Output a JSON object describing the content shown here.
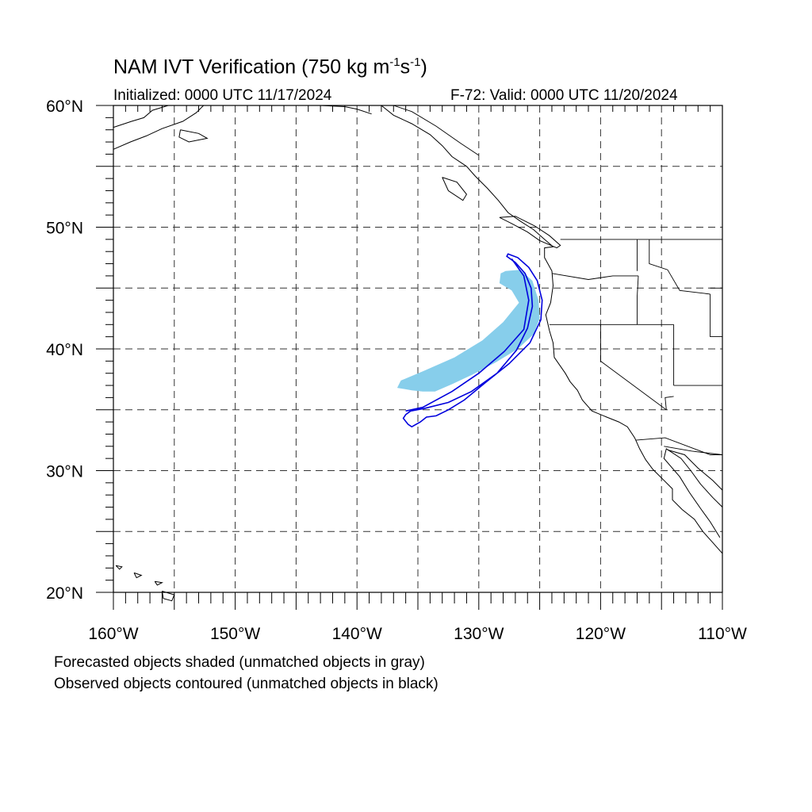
{
  "title": {
    "main": "NAM IVT Verification (750 kg m",
    "exp1": "-1",
    "mid": "s",
    "exp2": "-1",
    "end": ")"
  },
  "subtitle": {
    "left": "Initialized: 0000 UTC 11/17/2024",
    "right": "F-72: Valid: 0000 UTC 11/20/2024"
  },
  "axes": {
    "lon_range": [
      -160,
      -110
    ],
    "lat_range": [
      20,
      60
    ],
    "lon_ticks": [
      {
        "value": -160,
        "label": "160°W"
      },
      {
        "value": -150,
        "label": "150°W"
      },
      {
        "value": -140,
        "label": "140°W"
      },
      {
        "value": -130,
        "label": "130°W"
      },
      {
        "value": -120,
        "label": "120°W"
      },
      {
        "value": -110,
        "label": "110°W"
      }
    ],
    "lat_ticks": [
      {
        "value": 20,
        "label": "20°N"
      },
      {
        "value": 30,
        "label": "30°N"
      },
      {
        "value": 40,
        "label": "40°N"
      },
      {
        "value": 50,
        "label": "50°N"
      },
      {
        "value": 60,
        "label": "60°N"
      }
    ],
    "grid_interval_deg": 5,
    "grid_style": "dashed",
    "grid": true
  },
  "map": {
    "region": "Northeast Pacific and western North America",
    "coastline_color": "#000000",
    "border_color": "#000000"
  },
  "objects": {
    "forecast": {
      "style": "shaded",
      "color": "#87CEEB",
      "matched": true,
      "outline": [
        [
          -127.8,
          46.4
        ],
        [
          -126.6,
          46.5
        ],
        [
          -125.6,
          45.6
        ],
        [
          -125.1,
          44.0
        ],
        [
          -125.0,
          42.5
        ],
        [
          -125.5,
          41.2
        ],
        [
          -126.8,
          40.0
        ],
        [
          -128.6,
          38.9
        ],
        [
          -130.5,
          37.9
        ],
        [
          -132.2,
          37.1
        ],
        [
          -133.6,
          36.5
        ],
        [
          -134.6,
          36.5
        ],
        [
          -135.5,
          36.6
        ],
        [
          -136.7,
          36.8
        ],
        [
          -136.4,
          37.4
        ],
        [
          -134.5,
          38.2
        ],
        [
          -132.0,
          39.3
        ],
        [
          -129.7,
          40.7
        ],
        [
          -128.0,
          42.2
        ],
        [
          -126.7,
          43.8
        ],
        [
          -127.3,
          44.8
        ],
        [
          -128.3,
          45.4
        ],
        [
          -128.2,
          46.2
        ]
      ]
    },
    "observed": {
      "style": "contoured",
      "color": "#0000DD",
      "matched": true,
      "outline": [
        [
          -127.6,
          47.8
        ],
        [
          -126.8,
          47.5
        ],
        [
          -125.9,
          46.7
        ],
        [
          -125.2,
          45.6
        ],
        [
          -124.8,
          44.0
        ],
        [
          -124.9,
          42.4
        ],
        [
          -125.8,
          40.5
        ],
        [
          -127.5,
          38.8
        ],
        [
          -129.5,
          37.2
        ],
        [
          -131.2,
          35.8
        ],
        [
          -132.5,
          35.0
        ],
        [
          -133.5,
          34.5
        ],
        [
          -134.3,
          34.4
        ],
        [
          -134.8,
          34.0
        ],
        [
          -135.5,
          33.6
        ],
        [
          -135.8,
          33.8
        ],
        [
          -136.2,
          34.3
        ],
        [
          -136.0,
          34.6
        ],
        [
          -135.6,
          34.9
        ],
        [
          -134.5,
          35.1
        ],
        [
          -132.5,
          35.6
        ],
        [
          -130.6,
          36.5
        ],
        [
          -128.5,
          38.0
        ],
        [
          -126.9,
          39.9
        ],
        [
          -126.0,
          41.7
        ],
        [
          -125.6,
          43.5
        ],
        [
          -125.7,
          45.0
        ],
        [
          -126.2,
          46.2
        ],
        [
          -127.0,
          47.1
        ],
        [
          -127.7,
          47.6
        ]
      ],
      "axis_line": [
        [
          -127.3,
          47.4
        ],
        [
          -126.3,
          46.0
        ],
        [
          -125.9,
          44.0
        ],
        [
          -126.3,
          41.6
        ],
        [
          -127.9,
          39.8
        ],
        [
          -130.0,
          38.0
        ],
        [
          -132.2,
          36.5
        ],
        [
          -134.6,
          35.2
        ],
        [
          -136.0,
          34.9
        ]
      ]
    }
  },
  "legend": {
    "line1": "Forecasted objects shaded (unmatched objects in gray)",
    "line2": "Observed objects contoured (unmatched objects in black)"
  }
}
